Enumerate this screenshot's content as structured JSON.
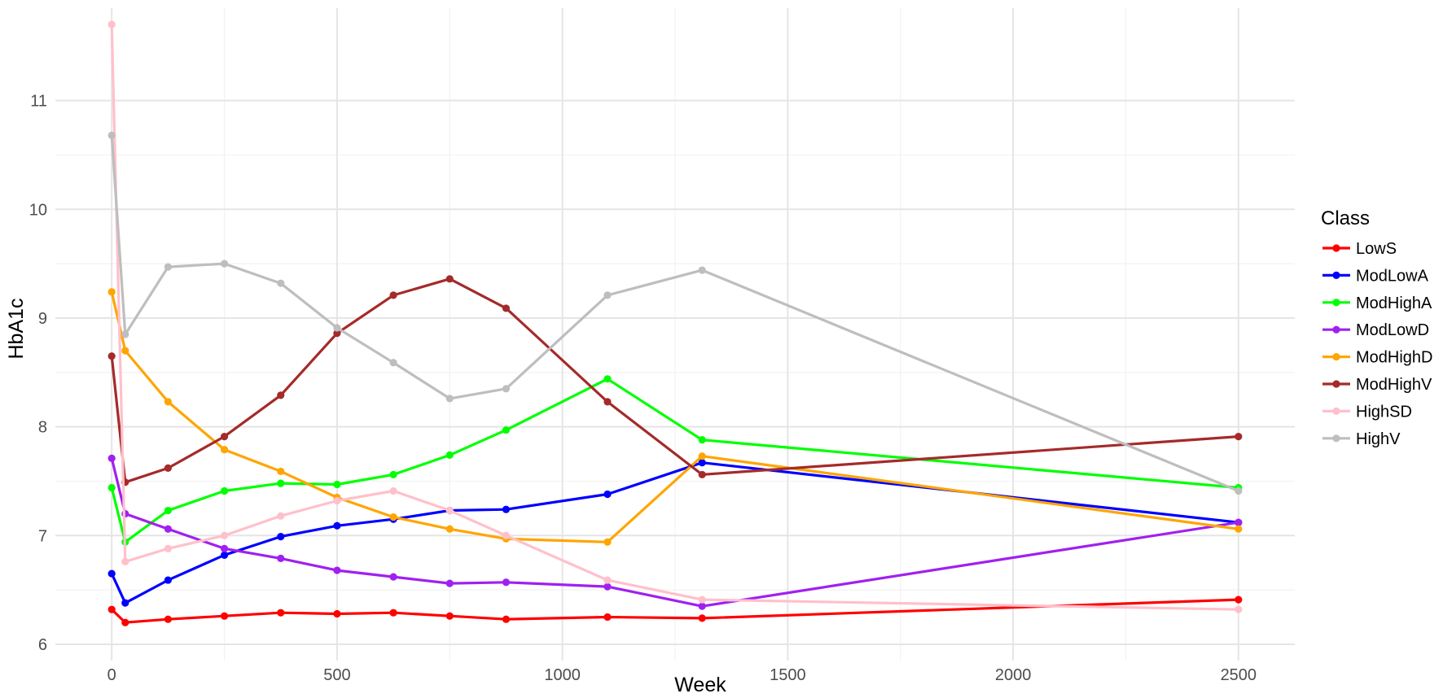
{
  "chart_data": {
    "type": "line",
    "title": "",
    "xlabel": "Week",
    "ylabel": "HbA1c",
    "xlim": [
      -125,
      2625
    ],
    "ylim": [
      5.85,
      11.85
    ],
    "xticks": [
      0,
      500,
      1000,
      1500,
      2000,
      2500
    ],
    "yticks": [
      6,
      7,
      8,
      9,
      10,
      11
    ],
    "grid": true,
    "legend_title": "Class",
    "legend_position": "right",
    "x": [
      0,
      30,
      125,
      250,
      375,
      500,
      625,
      750,
      875,
      1100,
      1310,
      2500
    ],
    "series": [
      {
        "name": "LowS",
        "color": "#ff0000",
        "values": [
          6.32,
          6.2,
          6.23,
          6.26,
          6.29,
          6.28,
          6.29,
          6.26,
          6.23,
          6.25,
          6.24,
          6.41
        ]
      },
      {
        "name": "ModLowA",
        "color": "#0000ff",
        "values": [
          6.65,
          6.38,
          6.59,
          6.82,
          6.99,
          7.09,
          7.15,
          7.23,
          7.24,
          7.38,
          7.67,
          7.12
        ]
      },
      {
        "name": "ModHighA",
        "color": "#00ff00",
        "values": [
          7.44,
          6.94,
          7.23,
          7.41,
          7.48,
          7.47,
          7.56,
          7.74,
          7.97,
          8.44,
          7.88,
          7.44
        ]
      },
      {
        "name": "ModLowD",
        "color": "#a020f0",
        "values": [
          7.71,
          7.2,
          7.06,
          6.88,
          6.79,
          6.68,
          6.62,
          6.56,
          6.57,
          6.53,
          6.35,
          7.12
        ]
      },
      {
        "name": "ModHighD",
        "color": "#ffa500",
        "values": [
          9.24,
          8.7,
          8.23,
          7.79,
          7.59,
          7.35,
          7.17,
          7.06,
          6.97,
          6.94,
          7.73,
          7.06
        ]
      },
      {
        "name": "ModHighV",
        "color": "#a52a2a",
        "values": [
          8.65,
          7.49,
          7.62,
          7.91,
          8.29,
          8.86,
          9.21,
          9.36,
          9.09,
          8.23,
          7.56,
          7.91
        ]
      },
      {
        "name": "HighSD",
        "color": "#ffc0cb",
        "values": [
          11.7,
          6.76,
          6.88,
          7.0,
          7.18,
          7.32,
          7.41,
          7.23,
          7.0,
          6.59,
          6.41,
          6.32
        ]
      },
      {
        "name": "HighV",
        "color": "#bebebe",
        "values": [
          10.68,
          8.85,
          9.47,
          9.5,
          9.32,
          8.91,
          8.59,
          8.26,
          8.35,
          9.21,
          9.44,
          7.41
        ]
      }
    ]
  }
}
